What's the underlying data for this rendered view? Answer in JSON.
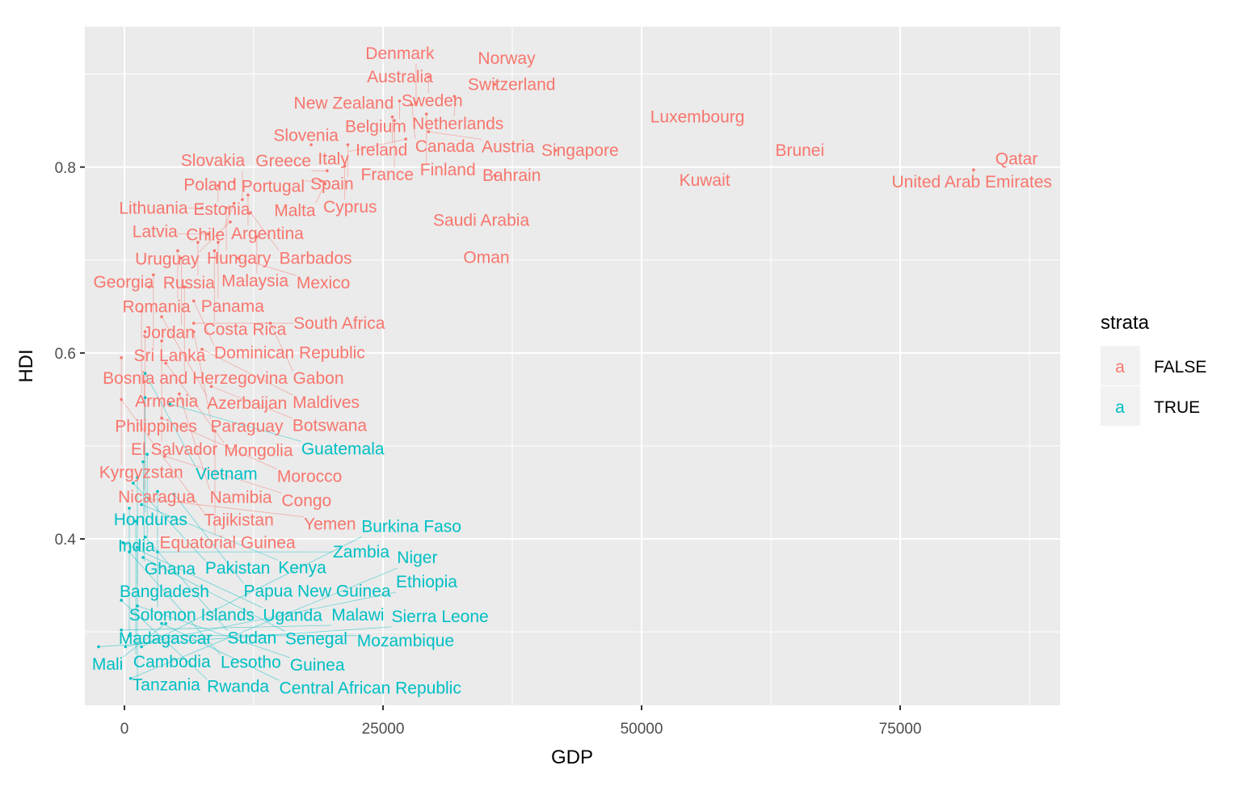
{
  "chart_data": {
    "type": "scatter",
    "title": "",
    "xlabel": "GDP",
    "ylabel": "HDI",
    "xlim": [
      -3828,
      90469
    ],
    "ylim": [
      0.221,
      0.951
    ],
    "x_ticks": [
      0,
      25000,
      50000,
      75000
    ],
    "x_tick_labels": [
      "0",
      "25000",
      "50000",
      "75000"
    ],
    "x_minor": [
      12500,
      37500,
      62500,
      87500
    ],
    "y_ticks": [
      0.4,
      0.6,
      0.8
    ],
    "y_tick_labels": [
      "0.4",
      "0.6",
      "0.8"
    ],
    "y_minor": [
      0.3,
      0.5,
      0.7,
      0.9
    ],
    "grid": true,
    "legend": {
      "title": "strata",
      "placement": "right",
      "key_glyph": "a",
      "entries": [
        {
          "label": "FALSE",
          "color": "#F8766D"
        },
        {
          "label": "TRUE",
          "color": "#00BFC4"
        }
      ]
    },
    "points": [
      {
        "label": "Norway",
        "x": 36950,
        "y": 0.917,
        "strata": "FALSE"
      },
      {
        "label": "Australia",
        "x": 26640,
        "y": 0.897,
        "strata": "FALSE"
      },
      {
        "label": "Sweden",
        "x": 29400,
        "y": 0.897,
        "strata": "FALSE"
      },
      {
        "label": "Switzerland",
        "x": 35800,
        "y": 0.889,
        "strata": "FALSE"
      },
      {
        "label": "Netherlands",
        "x": 31900,
        "y": 0.876,
        "strata": "FALSE"
      },
      {
        "label": "New Zealand",
        "x": 21200,
        "y": 0.869,
        "strata": "FALSE"
      },
      {
        "label": "Belgium",
        "x": 26600,
        "y": 0.871,
        "strata": "FALSE"
      },
      {
        "label": "Canada",
        "x": 27800,
        "y": 0.867,
        "strata": "FALSE"
      },
      {
        "label": "Denmark",
        "x": 28200,
        "y": 0.869,
        "strata": "FALSE"
      },
      {
        "label": "Ireland",
        "x": 25900,
        "y": 0.854,
        "strata": "FALSE"
      },
      {
        "label": "Finland",
        "x": 29200,
        "y": 0.857,
        "strata": "FALSE"
      },
      {
        "label": "France",
        "x": 26100,
        "y": 0.85,
        "strata": "FALSE"
      },
      {
        "label": "Austria",
        "x": 29400,
        "y": 0.838,
        "strata": "FALSE"
      },
      {
        "label": "Italy",
        "x": 27200,
        "y": 0.83,
        "strata": "FALSE"
      },
      {
        "label": "Luxembourg",
        "x": 55400,
        "y": 0.854,
        "strata": "FALSE"
      },
      {
        "label": "Singapore",
        "x": 41700,
        "y": 0.818,
        "strata": "FALSE"
      },
      {
        "label": "Brunei",
        "x": 65300,
        "y": 0.818,
        "strata": "FALSE"
      },
      {
        "label": "Qatar",
        "x": 86250,
        "y": 0.809,
        "strata": "FALSE"
      },
      {
        "label": "United Arab Emirates",
        "x": 82100,
        "y": 0.797,
        "strata": "FALSE"
      },
      {
        "label": "Kuwait",
        "x": 56100,
        "y": 0.786,
        "strata": "FALSE"
      },
      {
        "label": "Bahrain",
        "x": 35800,
        "y": 0.791,
        "strata": "FALSE"
      },
      {
        "label": "Saudi Arabia",
        "x": 34500,
        "y": 0.743,
        "strata": "FALSE"
      },
      {
        "label": "Oman",
        "x": 35000,
        "y": 0.703,
        "strata": "FALSE"
      },
      {
        "label": "Slovenia",
        "x": 18050,
        "y": 0.824,
        "strata": "FALSE"
      },
      {
        "label": "Spain",
        "x": 21600,
        "y": 0.824,
        "strata": "FALSE"
      },
      {
        "label": "Cyprus",
        "x": 21300,
        "y": 0.801,
        "strata": "FALSE"
      },
      {
        "label": "Greece",
        "x": 19600,
        "y": 0.796,
        "strata": "FALSE"
      },
      {
        "label": "Portugal",
        "x": 19000,
        "y": 0.785,
        "strata": "FALSE"
      },
      {
        "label": "Malta",
        "x": 19400,
        "y": 0.782,
        "strata": "FALSE"
      },
      {
        "label": "Poland",
        "x": 10600,
        "y": 0.784,
        "strata": "FALSE"
      },
      {
        "label": "Estonia",
        "x": 9060,
        "y": 0.78,
        "strata": "FALSE"
      },
      {
        "label": "Argentina",
        "x": 11950,
        "y": 0.77,
        "strata": "FALSE"
      },
      {
        "label": "Slovakia",
        "x": 11400,
        "y": 0.765,
        "strata": "FALSE"
      },
      {
        "label": "Chile",
        "x": 10600,
        "y": 0.761,
        "strata": "FALSE"
      },
      {
        "label": "Lithuania",
        "x": 7500,
        "y": 0.756,
        "strata": "FALSE"
      },
      {
        "label": "Hungary",
        "x": 9850,
        "y": 0.756,
        "strata": "FALSE"
      },
      {
        "label": "Barbados",
        "x": 12190,
        "y": 0.751,
        "strata": "FALSE"
      },
      {
        "label": "Uruguay",
        "x": 10230,
        "y": 0.741,
        "strata": "FALSE"
      },
      {
        "label": "Latvia",
        "x": 8100,
        "y": 0.728,
        "strata": "FALSE"
      },
      {
        "label": "Malaysia",
        "x": 12800,
        "y": 0.725,
        "strata": "FALSE"
      },
      {
        "label": "Russia",
        "x": 7100,
        "y": 0.719,
        "strata": "FALSE"
      },
      {
        "label": "Panama",
        "x": 9060,
        "y": 0.719,
        "strata": "FALSE"
      },
      {
        "label": "Romania",
        "x": 5150,
        "y": 0.71,
        "strata": "FALSE"
      },
      {
        "label": "Costa Rica",
        "x": 8700,
        "y": 0.71,
        "strata": "FALSE"
      },
      {
        "label": "Jordan",
        "x": 5500,
        "y": 0.702,
        "strata": "FALSE"
      },
      {
        "label": "Mexico",
        "x": 11000,
        "y": 0.702,
        "strata": "FALSE"
      },
      {
        "label": "Sri Lanka",
        "x": 2800,
        "y": 0.684,
        "strata": "FALSE"
      },
      {
        "label": "Bosnia and Herzegovina",
        "x": 5800,
        "y": 0.671,
        "strata": "FALSE"
      },
      {
        "label": "Georgia",
        "x": 2400,
        "y": 0.671,
        "strata": "FALSE"
      },
      {
        "label": "Dominican Republic",
        "x": 6700,
        "y": 0.656,
        "strata": "FALSE"
      },
      {
        "label": "Armenia",
        "x": 1650,
        "y": 0.645,
        "strata": "FALSE"
      },
      {
        "label": "Azerbaijan",
        "x": 3600,
        "y": 0.639,
        "strata": "FALSE"
      },
      {
        "label": "South Africa",
        "x": 6700,
        "y": 0.632,
        "strata": "FALSE"
      },
      {
        "label": "Gabon",
        "x": 14100,
        "y": 0.632,
        "strata": "FALSE"
      },
      {
        "label": "Philippines",
        "x": 2000,
        "y": 0.623,
        "strata": "FALSE"
      },
      {
        "label": "Paraguay",
        "x": 6700,
        "y": 0.623,
        "strata": "FALSE"
      },
      {
        "label": "El Salvador",
        "x": 3600,
        "y": 0.613,
        "strata": "FALSE"
      },
      {
        "label": "Maldives",
        "x": 7500,
        "y": 0.604,
        "strata": "FALSE"
      },
      {
        "label": "Kyrgyzstan",
        "x": -300,
        "y": 0.595,
        "strata": "FALSE"
      },
      {
        "label": "Mongolia",
        "x": 4000,
        "y": 0.589,
        "strata": "FALSE"
      },
      {
        "label": "Vietnam",
        "x": 2000,
        "y": 0.578,
        "strata": "TRUE"
      },
      {
        "label": "Nicaragua",
        "x": 1900,
        "y": 0.569,
        "strata": "FALSE"
      },
      {
        "label": "Botswana",
        "x": 8400,
        "y": 0.564,
        "strata": "FALSE"
      },
      {
        "label": "Namibia",
        "x": 5300,
        "y": 0.556,
        "strata": "FALSE"
      },
      {
        "label": "Honduras",
        "x": 2000,
        "y": 0.552,
        "strata": "TRUE"
      },
      {
        "label": "Tajikistan",
        "x": -300,
        "y": 0.55,
        "strata": "FALSE"
      },
      {
        "label": "Guatemala",
        "x": 4400,
        "y": 0.545,
        "strata": "TRUE"
      },
      {
        "label": "Morocco",
        "x": 3600,
        "y": 0.53,
        "strata": "FALSE"
      },
      {
        "label": "Equatorial Guinea",
        "x": 8750,
        "y": 0.516,
        "strata": "FALSE"
      },
      {
        "label": "India",
        "x": 2200,
        "y": 0.491,
        "strata": "TRUE"
      },
      {
        "label": "Congo",
        "x": 3900,
        "y": 0.489,
        "strata": "FALSE"
      },
      {
        "label": "Ghana",
        "x": 1800,
        "y": 0.483,
        "strata": "TRUE"
      },
      {
        "label": "Bangladesh",
        "x": 1250,
        "y": 0.466,
        "strata": "TRUE"
      },
      {
        "label": "Pakistan",
        "x": 850,
        "y": 0.46,
        "strata": "TRUE"
      },
      {
        "label": "Solomon Islands",
        "x": 3200,
        "y": 0.451,
        "strata": "TRUE"
      },
      {
        "label": "Papua New Guinea",
        "x": 4800,
        "y": 0.448,
        "strata": "TRUE"
      },
      {
        "label": "Yemen",
        "x": 2400,
        "y": 0.443,
        "strata": "FALSE"
      },
      {
        "label": "Kenya",
        "x": 1650,
        "y": 0.437,
        "strata": "TRUE"
      },
      {
        "label": "Madagascar",
        "x": 470,
        "y": 0.433,
        "strata": "TRUE"
      },
      {
        "label": "Cambodia",
        "x": 1100,
        "y": 0.419,
        "strata": "TRUE"
      },
      {
        "label": "Sudan",
        "x": 2000,
        "y": 0.402,
        "strata": "TRUE"
      },
      {
        "label": "Uganda",
        "x": -150,
        "y": 0.396,
        "strata": "TRUE"
      },
      {
        "label": "Tanzania",
        "x": 1250,
        "y": 0.391,
        "strata": "TRUE"
      },
      {
        "label": "Lesotho",
        "x": 470,
        "y": 0.386,
        "strata": "TRUE"
      },
      {
        "label": "Zambia",
        "x": 3200,
        "y": 0.386,
        "strata": "TRUE"
      },
      {
        "label": "Senegal",
        "x": 1800,
        "y": 0.38,
        "strata": "TRUE"
      },
      {
        "label": "Rwanda",
        "x": -300,
        "y": 0.334,
        "strata": "TRUE"
      },
      {
        "label": "Guinea",
        "x": 1250,
        "y": 0.328,
        "strata": "TRUE"
      },
      {
        "label": "Central African Republic",
        "x": 3600,
        "y": 0.309,
        "strata": "TRUE"
      },
      {
        "label": "Mali",
        "x": 4000,
        "y": 0.309,
        "strata": "TRUE"
      },
      {
        "label": "Malawi",
        "x": -300,
        "y": 0.302,
        "strata": "TRUE"
      },
      {
        "label": "Mozambique",
        "x": 470,
        "y": 0.296,
        "strata": "TRUE"
      },
      {
        "label": "Sierra Leone",
        "x": -2500,
        "y": 0.284,
        "strata": "TRUE"
      },
      {
        "label": "Ethiopia",
        "x": 100,
        "y": 0.284,
        "strata": "TRUE"
      },
      {
        "label": "Burkina Faso",
        "x": 1650,
        "y": 0.284,
        "strata": "TRUE"
      },
      {
        "label": "Niger",
        "x": 600,
        "y": 0.25,
        "strata": "TRUE"
      }
    ]
  }
}
